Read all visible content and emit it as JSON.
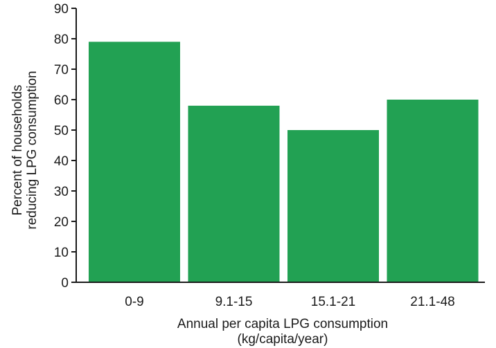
{
  "chart_data": {
    "type": "bar",
    "categories": [
      "0-9",
      "9.1-15",
      "15.1-21",
      "21.1-48"
    ],
    "values": [
      79,
      58,
      50,
      60
    ],
    "title": "",
    "xlabel": [
      "Annual per capita LPG consumption",
      "(kg/capita/year)"
    ],
    "ylabel": [
      "Percent of households",
      "reducing LPG consumption"
    ],
    "ylim": [
      0,
      90
    ],
    "yticks": [
      0,
      10,
      20,
      30,
      40,
      50,
      60,
      70,
      80,
      90
    ],
    "bar_color": "#22a153",
    "grid": false,
    "legend": "none"
  }
}
